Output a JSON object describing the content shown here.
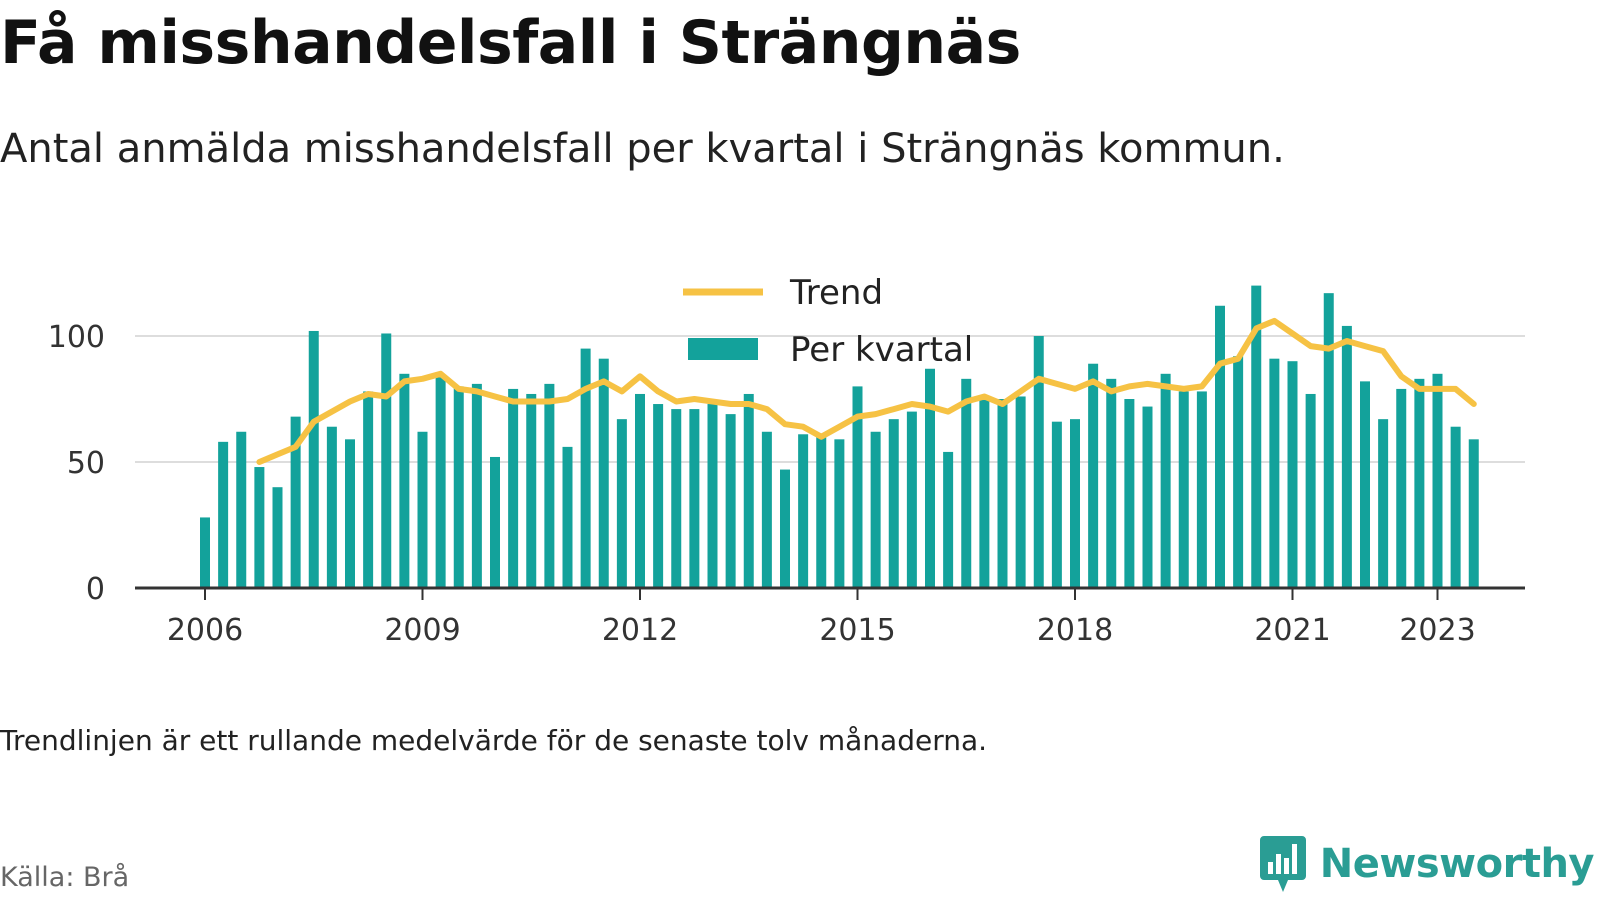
{
  "header": {
    "title": "Få misshandelsfall i Strängnäs",
    "subtitle": "Antal anmälda misshandelsfall per kvartal i Strängnäs kommun."
  },
  "footer": {
    "note": "Trendlinjen är ett rullande medelvärde för de senaste tolv månaderna.",
    "source": "Källa: Brå",
    "brand": "Newsworthy",
    "brand_icon": "bar-chart-speech-bubble-icon"
  },
  "colors": {
    "bars": "#13a29b",
    "trend": "#f6c244",
    "grid": "#dddddd",
    "axis": "#333333",
    "brand": "#2a9d94"
  },
  "chart_data": {
    "type": "bar",
    "x_unit": "quarter",
    "start_quarter": "2006Q1",
    "xlim": [
      "2006Q1",
      "2023Q2"
    ],
    "ylim": [
      0,
      120
    ],
    "y_ticks": [
      0,
      50,
      100
    ],
    "x_tick_labels": [
      "2006",
      "2009",
      "2012",
      "2015",
      "2018",
      "2021",
      "2023"
    ],
    "grid": true,
    "legend_position": "top",
    "series": [
      {
        "name": "Per kvartal",
        "kind": "bar",
        "values": [
          28,
          58,
          62,
          48,
          40,
          68,
          102,
          64,
          59,
          78,
          101,
          85,
          62,
          84,
          80,
          81,
          52,
          79,
          77,
          81,
          56,
          95,
          91,
          67,
          77,
          73,
          71,
          71,
          73,
          69,
          77,
          62,
          47,
          61,
          61,
          59,
          80,
          62,
          67,
          70,
          87,
          54,
          83,
          75,
          75,
          76,
          100,
          66,
          67,
          89,
          83,
          75,
          72,
          85,
          78,
          78,
          112,
          92,
          120,
          91,
          90,
          77,
          117,
          104,
          82,
          67,
          79,
          83,
          85,
          64,
          59
        ]
      },
      {
        "name": "Trend",
        "kind": "line",
        "values": [
          null,
          null,
          null,
          50,
          53,
          56,
          66,
          70,
          74,
          77,
          76,
          82,
          83,
          85,
          79,
          78,
          76,
          74,
          74,
          74,
          75,
          79,
          82,
          78,
          84,
          78,
          74,
          75,
          74,
          73,
          73,
          71,
          65,
          64,
          60,
          64,
          68,
          69,
          71,
          73,
          72,
          70,
          74,
          76,
          73,
          78,
          83,
          81,
          79,
          82,
          78,
          80,
          81,
          80,
          79,
          80,
          89,
          91,
          103,
          106,
          101,
          96,
          95,
          98,
          96,
          94,
          84,
          79,
          79,
          79,
          73
        ]
      }
    ]
  }
}
